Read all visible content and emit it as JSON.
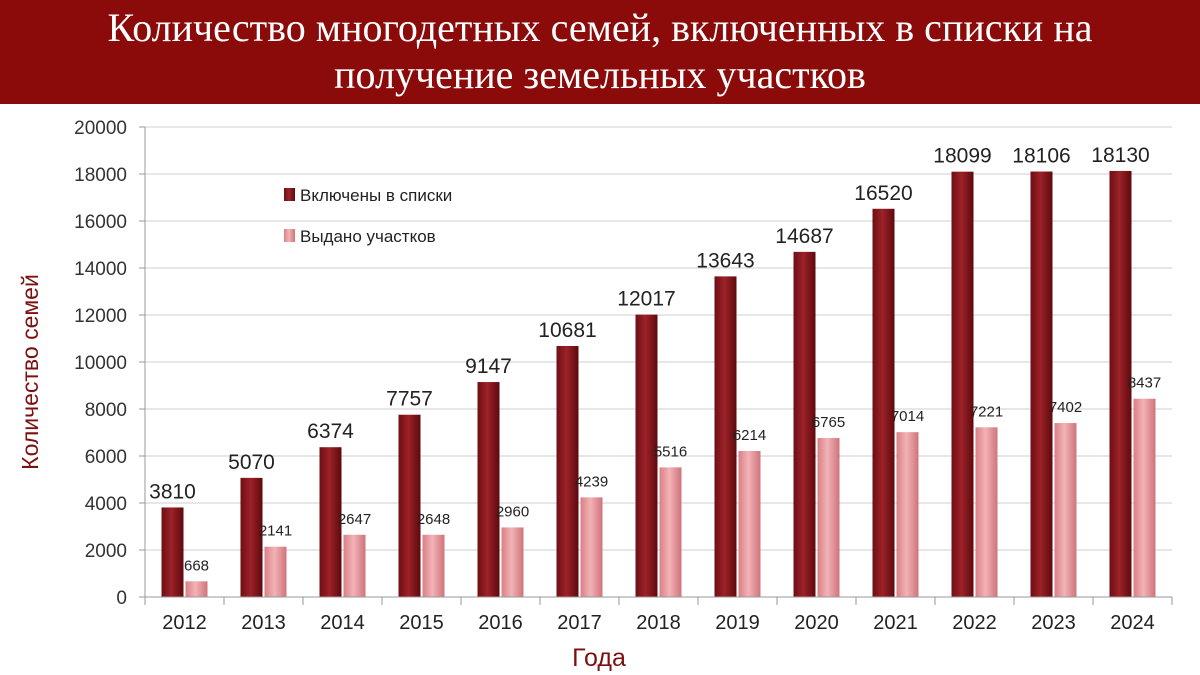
{
  "title": "Количество многодетных семей, включенных в списки на получение земельных участков",
  "colors": {
    "banner": "#8b0a0a",
    "series1": "#8b1a1e",
    "series2": "#e89ca0",
    "axis_title": "#7a1010",
    "grid": "#cfcfcf"
  },
  "chart_data": {
    "type": "bar",
    "categories": [
      "2012",
      "2013",
      "2014",
      "2015",
      "2016",
      "2017",
      "2018",
      "2019",
      "2020",
      "2021",
      "2022",
      "2023",
      "2024"
    ],
    "series": [
      {
        "name": "Включены в списки",
        "values": [
          3810,
          5070,
          6374,
          7757,
          9147,
          10681,
          12017,
          13643,
          14687,
          16520,
          18099,
          18106,
          18130
        ]
      },
      {
        "name": "Выдано участков",
        "values": [
          668,
          2141,
          2647,
          2648,
          2960,
          4239,
          5516,
          6214,
          6765,
          7014,
          7221,
          7402,
          8437
        ]
      }
    ],
    "xlabel": "Года",
    "ylabel": "Количество семей",
    "ylim": [
      0,
      20000
    ],
    "yticks": [
      0,
      2000,
      4000,
      6000,
      8000,
      10000,
      12000,
      14000,
      16000,
      18000,
      20000
    ],
    "grid": true,
    "legend": "top-left"
  }
}
